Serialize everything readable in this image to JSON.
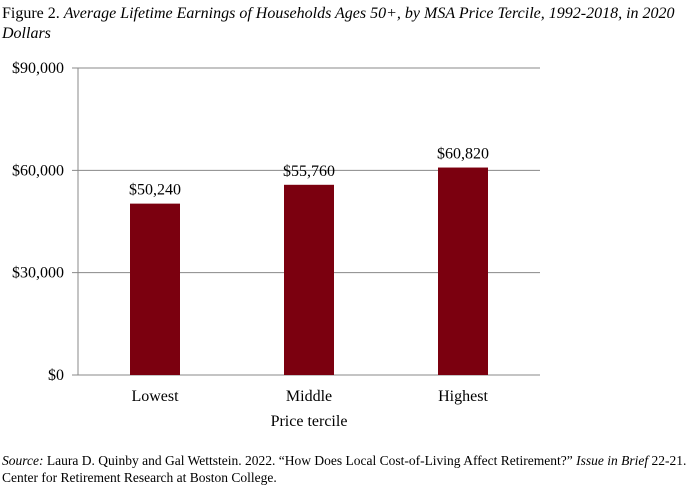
{
  "figure_label": "Figure 2.",
  "title": "Average Lifetime Earnings of Households Ages 50+, by MSA Price Tercile, 1992-2018, in 2020 Dollars",
  "chart_data": {
    "type": "bar",
    "categories": [
      "Lowest",
      "Middle",
      "Highest"
    ],
    "values": [
      50240,
      55760,
      60820
    ],
    "data_labels": [
      "$50,240",
      "$55,760",
      "$60,820"
    ],
    "xlabel": "Price tercile",
    "ylabel": "",
    "ylim": [
      0,
      90000
    ],
    "yticks": [
      0,
      30000,
      60000,
      90000
    ],
    "ytick_labels": [
      "$0",
      "$30,000",
      "$60,000",
      "$90,000"
    ],
    "grid": true,
    "bar_color": "#7b000f"
  },
  "source": {
    "label": "Source:",
    "text1": " Laura D. Quinby and Gal Wettstein. 2022. “How Does Local Cost-of-Living Affect Retirement?” ",
    "italic": "Issue in Brief",
    "text2": " 22-21. Center for Retirement Research at Boston College."
  }
}
